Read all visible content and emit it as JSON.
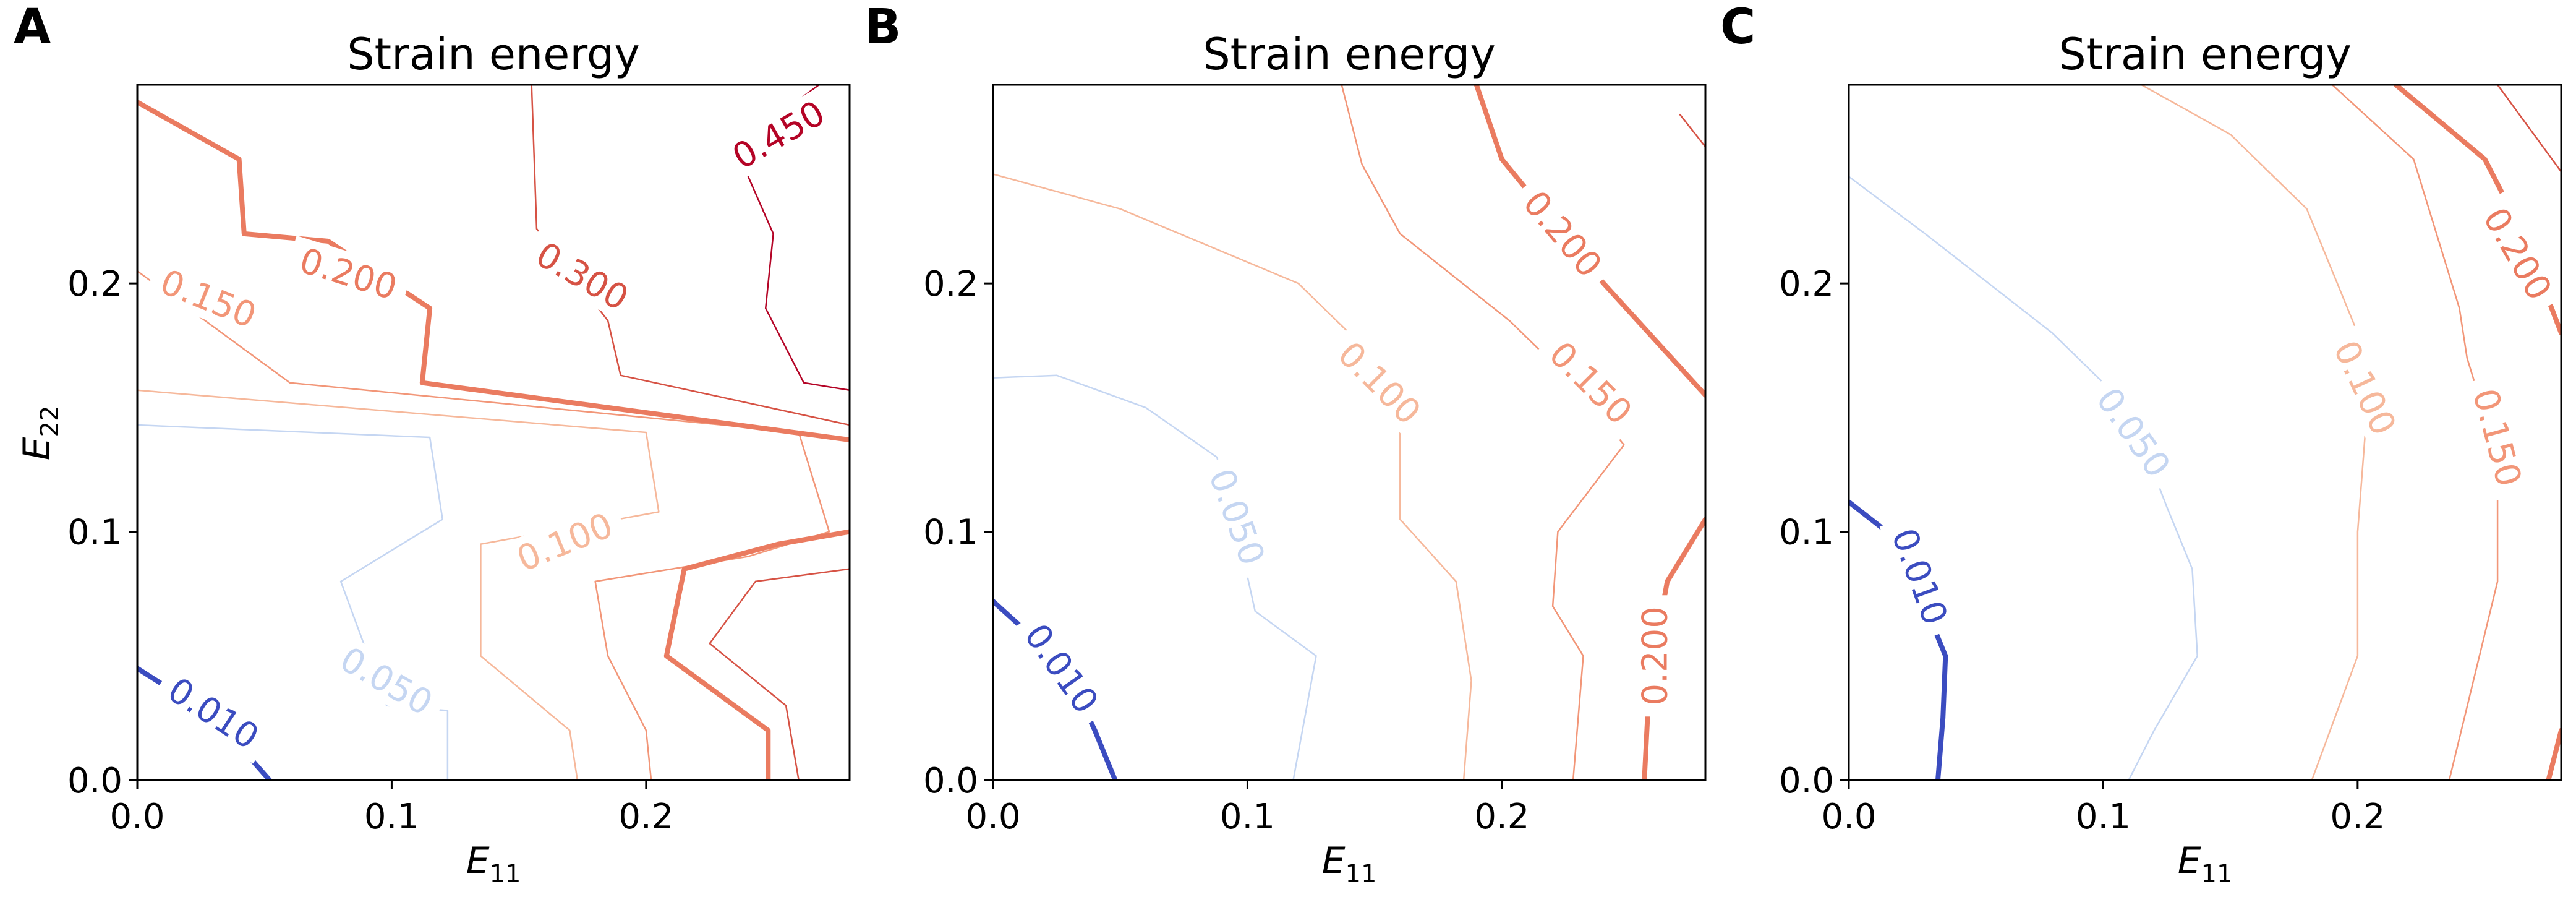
{
  "figure": {
    "panels": [
      "A",
      "B",
      "C"
    ],
    "y_axis_label_main": "E",
    "y_axis_label_sub": "22"
  },
  "chart_data": [
    {
      "panel": "A",
      "type": "line",
      "title": "Strain energy",
      "xlabel_main": "E",
      "xlabel_sub": "11",
      "xlim": [
        0.0,
        0.28
      ],
      "ylim": [
        0.0,
        0.28
      ],
      "xticks": [
        {
          "v": 0.0,
          "label": "0.0"
        },
        {
          "v": 0.1,
          "label": "0.1"
        },
        {
          "v": 0.2,
          "label": "0.2"
        }
      ],
      "yticks": [
        {
          "v": 0.0,
          "label": "0.0"
        },
        {
          "v": 0.1,
          "label": "0.1"
        },
        {
          "v": 0.2,
          "label": "0.2"
        }
      ],
      "contours": [
        {
          "level": 0.01,
          "label": "0.010",
          "color": "#3b4cc0",
          "width": 8,
          "points": [
            [
              0,
              0.045
            ],
            [
              0.02,
              0.032
            ],
            [
              0.04,
              0.014
            ],
            [
              0.052,
              0
            ]
          ],
          "label_at": [
            0.03,
            0.027
          ],
          "label_angle": 33
        },
        {
          "level": 0.05,
          "label": "0.050",
          "color": "#c5d6f2",
          "width": 2.5,
          "points": [
            [
              0,
              0.143
            ],
            [
              0.115,
              0.138
            ],
            [
              0.12,
              0.105
            ],
            [
              0.08,
              0.08
            ],
            [
              0.098,
              0.03
            ],
            [
              0.122,
              0.028
            ],
            [
              0.122,
              0
            ]
          ],
          "label_at": [
            0.098,
            0.04
          ],
          "label_angle": 30
        },
        {
          "level": 0.1,
          "label": "0.100",
          "color": "#f6b89b",
          "width": 2.5,
          "points": [
            [
              0,
              0.157
            ],
            [
              0.2,
              0.14
            ],
            [
              0.205,
              0.108
            ],
            [
              0.135,
              0.095
            ],
            [
              0.135,
              0.05
            ],
            [
              0.17,
              0.02
            ],
            [
              0.173,
              0
            ]
          ],
          "label_at": [
            0.168,
            0.096
          ],
          "label_angle": -22
        },
        {
          "level": 0.15,
          "label": "0.150",
          "color": "#f29678",
          "width": 2.5,
          "points": [
            [
              0,
              0.205
            ],
            [
              0.06,
              0.16
            ],
            [
              0.26,
              0.14
            ],
            [
              0.272,
              0.1
            ],
            [
              0.24,
              0.09
            ],
            [
              0.18,
              0.08
            ],
            [
              0.185,
              0.05
            ],
            [
              0.2,
              0.02
            ],
            [
              0.202,
              0
            ]
          ],
          "label_at": [
            0.028,
            0.194
          ],
          "label_angle": 22
        },
        {
          "level": 0.2,
          "label": "0.200",
          "color": "#ea7b60",
          "width": 8,
          "points": [
            [
              0,
              0.273
            ],
            [
              0.04,
              0.25
            ],
            [
              0.042,
              0.22
            ],
            [
              0.075,
              0.217
            ],
            [
              0.115,
              0.19
            ],
            [
              0.112,
              0.16
            ],
            [
              0.28,
              0.137
            ]
          ],
          "points2": [
            [
              0.28,
              0.1
            ],
            [
              0.252,
              0.095
            ],
            [
              0.215,
              0.085
            ],
            [
              0.208,
              0.05
            ],
            [
              0.248,
              0.02
            ],
            [
              0.248,
              0
            ]
          ],
          "label_at": [
            0.083,
            0.204
          ],
          "label_angle": 17
        },
        {
          "level": 0.3,
          "label": "0.300",
          "color": "#d65244",
          "width": 2.5,
          "points": [
            [
              0.155,
              0.28
            ],
            [
              0.157,
              0.222
            ],
            [
              0.185,
              0.185
            ],
            [
              0.19,
              0.163
            ],
            [
              0.28,
              0.143
            ]
          ],
          "points2": [
            [
              0.28,
              0.085
            ],
            [
              0.243,
              0.08
            ],
            [
              0.225,
              0.055
            ],
            [
              0.255,
              0.03
            ],
            [
              0.26,
              0
            ]
          ],
          "label_at": [
            0.175,
            0.203
          ],
          "label_angle": 30
        },
        {
          "level": 0.45,
          "label": "0.450",
          "color": "#b40426",
          "width": 2.5,
          "points": [
            [
              0.268,
              0.28
            ],
            [
              0.235,
              0.255
            ],
            [
              0.25,
              0.22
            ],
            [
              0.247,
              0.19
            ],
            [
              0.262,
              0.16
            ],
            [
              0.28,
              0.157
            ]
          ],
          "label_at": [
            0.252,
            0.26
          ],
          "label_angle": -30
        }
      ]
    },
    {
      "panel": "B",
      "type": "line",
      "title": "Strain energy",
      "xlabel_main": "E",
      "xlabel_sub": "11",
      "xlim": [
        0.0,
        0.28
      ],
      "ylim": [
        0.0,
        0.28
      ],
      "xticks": [
        {
          "v": 0.0,
          "label": "0.0"
        },
        {
          "v": 0.1,
          "label": "0.1"
        },
        {
          "v": 0.2,
          "label": "0.2"
        }
      ],
      "yticks": [
        {
          "v": 0.0,
          "label": "0.0"
        },
        {
          "v": 0.1,
          "label": "0.1"
        },
        {
          "v": 0.2,
          "label": "0.2"
        }
      ],
      "contours": [
        {
          "level": 0.01,
          "label": "0.010",
          "color": "#3b4cc0",
          "width": 8,
          "points": [
            [
              0,
              0.072
            ],
            [
              0.028,
              0.046
            ],
            [
              0.04,
              0.02
            ],
            [
              0.048,
              0
            ]
          ],
          "label_at": [
            0.027,
            0.045
          ],
          "label_angle": 55
        },
        {
          "level": 0.05,
          "label": "0.050",
          "color": "#c5d6f2",
          "width": 2.5,
          "points": [
            [
              0,
              0.162
            ],
            [
              0.025,
              0.163
            ],
            [
              0.06,
              0.15
            ],
            [
              0.088,
              0.13
            ],
            [
              0.095,
              0.105
            ],
            [
              0.103,
              0.068
            ],
            [
              0.127,
              0.05
            ],
            [
              0.118,
              0
            ]
          ],
          "label_at": [
            0.096,
            0.106
          ],
          "label_angle": 70
        },
        {
          "level": 0.1,
          "label": "0.100",
          "color": "#f6b89b",
          "width": 2.5,
          "points": [
            [
              0,
              0.244
            ],
            [
              0.05,
              0.23
            ],
            [
              0.12,
              0.2
            ],
            [
              0.15,
              0.17
            ],
            [
              0.16,
              0.14
            ],
            [
              0.16,
              0.105
            ],
            [
              0.182,
              0.08
            ],
            [
              0.188,
              0.04
            ],
            [
              0.185,
              0
            ]
          ],
          "label_at": [
            0.152,
            0.16
          ],
          "label_angle": 45
        },
        {
          "level": 0.15,
          "label": "0.150",
          "color": "#f29678",
          "width": 2.5,
          "points": [
            [
              0.137,
              0.28
            ],
            [
              0.145,
              0.248
            ],
            [
              0.16,
              0.22
            ],
            [
              0.203,
              0.185
            ],
            [
              0.228,
              0.16
            ],
            [
              0.248,
              0.135
            ],
            [
              0.222,
              0.1
            ],
            [
              0.22,
              0.07
            ],
            [
              0.232,
              0.05
            ],
            [
              0.228,
              0
            ]
          ],
          "label_at": [
            0.235,
            0.16
          ],
          "label_angle": 45
        },
        {
          "level": 0.2,
          "label": "0.200",
          "color": "#ea7b60",
          "width": 8,
          "points": [
            [
              0.19,
              0.28
            ],
            [
              0.2,
              0.25
            ],
            [
              0.24,
              0.2
            ],
            [
              0.28,
              0.155
            ]
          ],
          "points2": [
            [
              0.28,
              0.105
            ],
            [
              0.265,
              0.08
            ],
            [
              0.258,
              0.04
            ],
            [
              0.256,
              0
            ]
          ],
          "label_at": [
            0.224,
            0.22
          ],
          "label_angle": 50,
          "label2": "0.200",
          "label2_at": [
            0.26,
            0.05
          ],
          "label2_angle": -90
        },
        {
          "level": 0.3,
          "label": "",
          "color": "#d65244",
          "width": 2.5,
          "points": [
            [
              0.28,
              0.255
            ],
            [
              0.27,
              0.268
            ]
          ],
          "label_at": null,
          "label_angle": 0
        }
      ]
    },
    {
      "panel": "C",
      "type": "line",
      "title": "Strain energy",
      "xlabel_main": "E",
      "xlabel_sub": "11",
      "xlim": [
        0.0,
        0.28
      ],
      "ylim": [
        0.0,
        0.28
      ],
      "xticks": [
        {
          "v": 0.0,
          "label": "0.0"
        },
        {
          "v": 0.1,
          "label": "0.1"
        },
        {
          "v": 0.2,
          "label": "0.2"
        }
      ],
      "yticks": [
        {
          "v": 0.0,
          "label": "0.0"
        },
        {
          "v": 0.1,
          "label": "0.1"
        },
        {
          "v": 0.2,
          "label": "0.2"
        }
      ],
      "contours": [
        {
          "level": 0.01,
          "label": "0.010",
          "color": "#3b4cc0",
          "width": 8,
          "points": [
            [
              0,
              0.112
            ],
            [
              0.015,
              0.1
            ],
            [
              0.03,
              0.07
            ],
            [
              0.038,
              0.05
            ],
            [
              0.037,
              0.025
            ],
            [
              0.035,
              0
            ]
          ],
          "label_at": [
            0.028,
            0.082
          ],
          "label_angle": 70
        },
        {
          "level": 0.05,
          "label": "0.050",
          "color": "#c5d6f2",
          "width": 2.5,
          "points": [
            [
              0,
              0.243
            ],
            [
              0.03,
              0.22
            ],
            [
              0.08,
              0.18
            ],
            [
              0.11,
              0.15
            ],
            [
              0.125,
              0.11
            ],
            [
              0.135,
              0.085
            ],
            [
              0.137,
              0.05
            ],
            [
              0.12,
              0.02
            ],
            [
              0.11,
              0
            ]
          ],
          "label_at": [
            0.112,
            0.14
          ],
          "label_angle": 55
        },
        {
          "level": 0.1,
          "label": "0.100",
          "color": "#f6b89b",
          "width": 2.5,
          "points": [
            [
              0.115,
              0.28
            ],
            [
              0.15,
              0.26
            ],
            [
              0.18,
              0.23
            ],
            [
              0.2,
              0.18
            ],
            [
              0.203,
              0.14
            ],
            [
              0.2,
              0.1
            ],
            [
              0.2,
              0.05
            ],
            [
              0.182,
              0
            ]
          ],
          "label_at": [
            0.203,
            0.158
          ],
          "label_angle": 65
        },
        {
          "level": 0.15,
          "label": "0.150",
          "color": "#f29678",
          "width": 2.5,
          "points": [
            [
              0.19,
              0.28
            ],
            [
              0.222,
              0.25
            ],
            [
              0.24,
              0.19
            ],
            [
              0.243,
              0.17
            ],
            [
              0.255,
              0.13
            ],
            [
              0.255,
              0.08
            ],
            [
              0.236,
              0
            ]
          ],
          "label_at": [
            0.255,
            0.138
          ],
          "label_angle": 75
        },
        {
          "level": 0.2,
          "label": "0.200",
          "color": "#ea7b60",
          "width": 8,
          "points": [
            [
              0.215,
              0.28
            ],
            [
              0.25,
              0.25
            ],
            [
              0.265,
              0.22
            ],
            [
              0.28,
              0.18
            ]
          ],
          "points2": [
            [
              0.28,
              0.02
            ],
            [
              0.275,
              0
            ]
          ],
          "label_at": [
            0.263,
            0.212
          ],
          "label_angle": 60
        },
        {
          "level": 0.3,
          "label": "",
          "color": "#d65244",
          "width": 2.5,
          "points": [
            [
              0.255,
              0.28
            ],
            [
              0.28,
              0.245
            ]
          ],
          "label_at": null,
          "label_angle": 0
        }
      ]
    }
  ]
}
